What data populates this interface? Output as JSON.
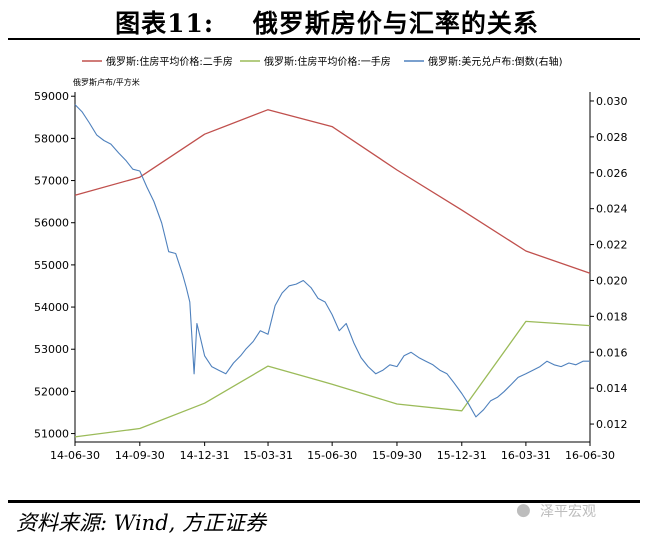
{
  "figure": {
    "title": "图表11:    俄罗斯房价与汇率的关系",
    "source": "资料来源: Wind, 方正证券",
    "watermark": "泽平宏观"
  },
  "chart_data": {
    "type": "line",
    "title": "",
    "ylabel": "俄罗斯卢布/平方米",
    "xlabel": "",
    "x_ticks": [
      "14-06-30",
      "14-09-30",
      "14-12-31",
      "15-03-31",
      "15-06-30",
      "15-09-30",
      "15-12-31",
      "16-03-31",
      "16-06-30"
    ],
    "ylim": [
      50800,
      59100
    ],
    "y_ticks": [
      51000,
      52000,
      53000,
      54000,
      55000,
      56000,
      57000,
      58000,
      59000
    ],
    "y2lim": [
      0.011,
      0.0305
    ],
    "y2_ticks": [
      "0.012",
      "0.014",
      "0.016",
      "0.018",
      "0.020",
      "0.022",
      "0.024",
      "0.026",
      "0.028",
      "0.030"
    ],
    "grid": false,
    "legend_position": "top",
    "series": [
      {
        "name": "俄罗斯:住房平均价格:二手房",
        "axis": "left",
        "color": "#c0504d",
        "x": [
          "2014-06-30",
          "2014-09-30",
          "2014-12-31",
          "2015-03-31",
          "2015-06-30",
          "2015-09-30",
          "2015-12-31",
          "2016-03-31",
          "2016-06-30"
        ],
        "values": [
          56650,
          57080,
          58100,
          58680,
          58280,
          57250,
          56300,
          55330,
          54800
        ]
      },
      {
        "name": "俄罗斯:住房平均价格:一手房",
        "axis": "left",
        "color": "#9bbb59",
        "x": [
          "2014-06-30",
          "2014-09-30",
          "2014-12-31",
          "2015-03-31",
          "2015-06-30",
          "2015-09-30",
          "2015-12-31",
          "2016-03-31",
          "2016-06-30"
        ],
        "values": [
          50920,
          51120,
          51720,
          52600,
          52170,
          51700,
          51540,
          53660,
          53560
        ]
      },
      {
        "name": "俄罗斯:美元兑卢布:倒数(右轴)",
        "axis": "right",
        "color": "#4f81bd",
        "x": [
          "2014-06-30",
          "2014-07-10",
          "2014-07-20",
          "2014-07-31",
          "2014-08-10",
          "2014-08-20",
          "2014-08-31",
          "2014-09-10",
          "2014-09-20",
          "2014-09-30",
          "2014-10-10",
          "2014-10-20",
          "2014-10-31",
          "2014-11-10",
          "2014-11-20",
          "2014-11-30",
          "2014-12-05",
          "2014-12-10",
          "2014-12-16",
          "2014-12-20",
          "2014-12-25",
          "2014-12-31",
          "2015-01-10",
          "2015-01-20",
          "2015-01-30",
          "2015-02-10",
          "2015-02-20",
          "2015-02-28",
          "2015-03-10",
          "2015-03-20",
          "2015-03-31",
          "2015-04-10",
          "2015-04-20",
          "2015-04-30",
          "2015-05-10",
          "2015-05-20",
          "2015-05-31",
          "2015-06-10",
          "2015-06-20",
          "2015-06-30",
          "2015-07-10",
          "2015-07-20",
          "2015-07-31",
          "2015-08-10",
          "2015-08-20",
          "2015-08-31",
          "2015-09-10",
          "2015-09-20",
          "2015-09-30",
          "2015-10-10",
          "2015-10-20",
          "2015-10-31",
          "2015-11-10",
          "2015-11-20",
          "2015-11-30",
          "2015-12-10",
          "2015-12-20",
          "2015-12-31",
          "2016-01-10",
          "2016-01-20",
          "2016-01-31",
          "2016-02-10",
          "2016-02-20",
          "2016-02-29",
          "2016-03-10",
          "2016-03-20",
          "2016-03-31",
          "2016-04-10",
          "2016-04-20",
          "2016-04-30",
          "2016-05-10",
          "2016-05-20",
          "2016-05-31",
          "2016-06-10",
          "2016-06-20",
          "2016-06-30"
        ],
        "values": [
          0.0298,
          0.0294,
          0.0288,
          0.0281,
          0.0278,
          0.0276,
          0.0271,
          0.0267,
          0.0262,
          0.0261,
          0.0252,
          0.0244,
          0.0232,
          0.0216,
          0.0215,
          0.0203,
          0.0196,
          0.0188,
          0.0148,
          0.0176,
          0.0168,
          0.0158,
          0.0152,
          0.015,
          0.0148,
          0.0154,
          0.0158,
          0.0162,
          0.0166,
          0.0172,
          0.017,
          0.0186,
          0.0193,
          0.0197,
          0.0198,
          0.02,
          0.0196,
          0.019,
          0.0188,
          0.0181,
          0.0172,
          0.0176,
          0.0165,
          0.0157,
          0.0152,
          0.0148,
          0.015,
          0.0153,
          0.0152,
          0.0158,
          0.016,
          0.0157,
          0.0155,
          0.0153,
          0.015,
          0.0148,
          0.0143,
          0.0137,
          0.0131,
          0.0124,
          0.0128,
          0.0133,
          0.0135,
          0.0138,
          0.0142,
          0.0146,
          0.0148,
          0.015,
          0.0152,
          0.0155,
          0.0153,
          0.0152,
          0.0154,
          0.0153,
          0.0155,
          0.0155
        ]
      }
    ]
  }
}
